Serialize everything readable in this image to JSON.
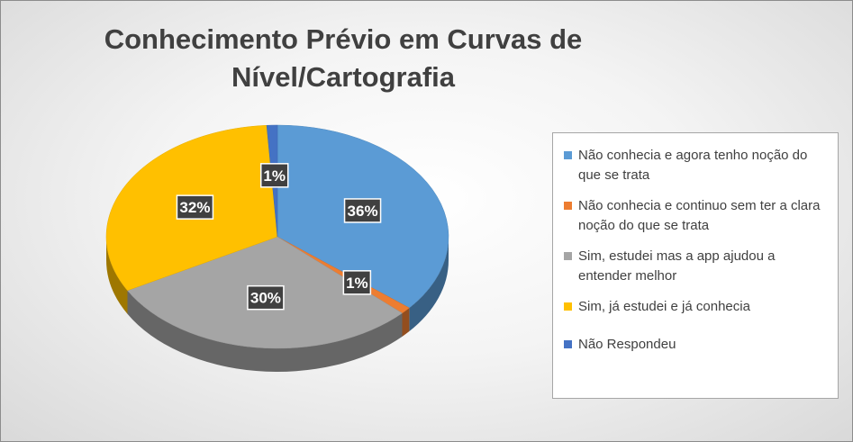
{
  "chart_data": {
    "type": "pie",
    "title": "Conhecimento Prévio em Curvas de Nível/Cartografia",
    "slices": [
      {
        "label": "Não conhecia e agora tenho noção do que se trata",
        "value": 36,
        "display": "36%",
        "color": "#5b9bd5"
      },
      {
        "label": "Não conhecia e continuo sem ter a clara noção do que se trata",
        "value": 1,
        "display": "1%",
        "color": "#ed7d31"
      },
      {
        "label": "Sim, estudei mas a app ajudou a entender melhor",
        "value": 30,
        "display": "30%",
        "color": "#a5a5a5"
      },
      {
        "label": "Sim, já estudei e já conhecia",
        "value": 32,
        "display": "32%",
        "color": "#ffc000"
      },
      {
        "label": "Não Respondeu",
        "value": 1,
        "display": "1%",
        "color": "#4472c4"
      }
    ],
    "legend_position": "right",
    "style": "3d-tilted"
  }
}
